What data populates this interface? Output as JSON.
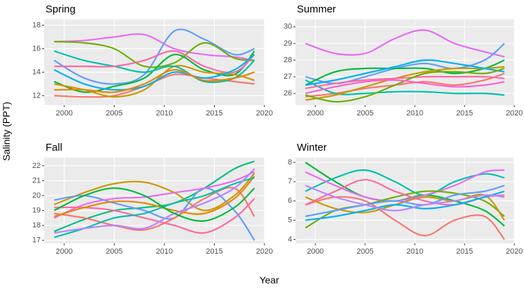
{
  "x_label": "Year",
  "y_label": "Salinity (PPT)",
  "chart_data": [
    {
      "type": "line",
      "title": "Spring",
      "x": [
        1999,
        2002,
        2005,
        2008,
        2011,
        2014,
        2017,
        2019
      ],
      "xlim": [
        1998,
        2020
      ],
      "xticks": [
        2000,
        2005,
        2010,
        2015,
        2020
      ],
      "ylim": [
        11.2,
        18.5
      ],
      "yticks": [
        12,
        14,
        16,
        18
      ],
      "grid": true,
      "series": [
        {
          "color": "#E76BF3",
          "values": [
            16.6,
            16.7,
            17.0,
            17.2,
            16.0,
            15.5,
            15.3,
            15.0
          ]
        },
        {
          "color": "#619CFF",
          "values": [
            15.0,
            13.5,
            13.0,
            13.8,
            17.5,
            16.8,
            15.5,
            16.0
          ]
        },
        {
          "color": "#F8766D",
          "values": [
            12.0,
            11.9,
            12.0,
            12.8,
            13.8,
            13.5,
            13.2,
            13.0
          ]
        },
        {
          "color": "#6BB100",
          "values": [
            16.6,
            16.5,
            16.0,
            14.5,
            14.8,
            16.5,
            15.2,
            15.0
          ]
        },
        {
          "color": "#00BA38",
          "values": [
            13.2,
            12.3,
            12.8,
            13.5,
            15.5,
            14.2,
            13.8,
            15.8
          ]
        },
        {
          "color": "#C99800",
          "values": [
            13.0,
            12.5,
            11.9,
            12.5,
            14.5,
            14.0,
            13.8,
            13.3
          ]
        },
        {
          "color": "#00C0AF",
          "values": [
            15.8,
            15.0,
            14.5,
            14.0,
            14.5,
            13.2,
            13.5,
            15.0
          ]
        },
        {
          "color": "#FF67A4",
          "values": [
            14.5,
            14.5,
            14.5,
            15.0,
            15.8,
            14.5,
            14.0,
            15.5
          ]
        },
        {
          "color": "#00B0F6",
          "values": [
            14.2,
            13.0,
            12.5,
            12.8,
            14.0,
            13.5,
            14.2,
            15.5
          ]
        },
        {
          "color": "#E58700",
          "values": [
            12.5,
            12.5,
            12.3,
            13.0,
            14.2,
            13.3,
            13.5,
            14.0
          ]
        }
      ]
    },
    {
      "type": "line",
      "title": "Summer",
      "x": [
        1999,
        2002,
        2005,
        2008,
        2011,
        2014,
        2017,
        2019
      ],
      "xlim": [
        1998,
        2020
      ],
      "xticks": [
        2000,
        2005,
        2010,
        2015,
        2020
      ],
      "ylim": [
        25.3,
        30.45
      ],
      "yticks": [
        26,
        27,
        28,
        29,
        30
      ],
      "grid": true,
      "series": [
        {
          "color": "#E76BF3",
          "values": [
            29.0,
            28.4,
            28.4,
            29.3,
            29.8,
            29.0,
            28.5,
            28.2
          ]
        },
        {
          "color": "#619CFF",
          "values": [
            27.0,
            26.6,
            27.0,
            27.5,
            27.8,
            27.5,
            28.0,
            29.0
          ]
        },
        {
          "color": "#F8766D",
          "values": [
            25.8,
            26.0,
            26.3,
            26.5,
            26.7,
            26.5,
            26.8,
            27.2
          ]
        },
        {
          "color": "#00BA38",
          "values": [
            26.5,
            27.3,
            27.5,
            27.5,
            27.5,
            27.2,
            27.5,
            28.0
          ]
        },
        {
          "color": "#00C0AF",
          "values": [
            26.8,
            26.0,
            26.0,
            26.1,
            26.1,
            26.0,
            26.0,
            25.9
          ]
        },
        {
          "color": "#C99800",
          "values": [
            25.6,
            25.9,
            26.4,
            26.9,
            27.3,
            27.5,
            27.5,
            27.6
          ]
        },
        {
          "color": "#00B0F6",
          "values": [
            26.5,
            26.8,
            27.2,
            27.6,
            28.0,
            27.8,
            27.5,
            27.3
          ]
        },
        {
          "color": "#FF67A4",
          "values": [
            26.3,
            26.6,
            26.8,
            26.9,
            27.0,
            27.0,
            27.0,
            26.9
          ]
        },
        {
          "color": "#6BB100",
          "values": [
            25.9,
            25.5,
            25.8,
            26.5,
            27.2,
            27.3,
            27.2,
            27.5
          ]
        },
        {
          "color": "#FD61D1",
          "values": [
            26.0,
            26.4,
            26.7,
            26.8,
            26.6,
            26.4,
            26.5,
            26.7
          ]
        }
      ]
    },
    {
      "type": "line",
      "title": "Fall",
      "x": [
        1999,
        2002,
        2005,
        2008,
        2011,
        2014,
        2017,
        2019
      ],
      "xlim": [
        1998,
        2020
      ],
      "xticks": [
        2000,
        2005,
        2010,
        2015,
        2020
      ],
      "ylim": [
        16.8,
        22.55
      ],
      "yticks": [
        17,
        18,
        19,
        20,
        21,
        22
      ],
      "grid": true,
      "series": [
        {
          "color": "#00BF7D",
          "values": [
            17.6,
            18.4,
            19.0,
            19.2,
            19.5,
            20.5,
            21.8,
            22.3
          ]
        },
        {
          "color": "#C99800",
          "values": [
            19.4,
            20.2,
            20.8,
            20.9,
            20.2,
            19.0,
            20.0,
            21.5
          ]
        },
        {
          "color": "#619CFF",
          "values": [
            19.7,
            20.0,
            19.5,
            19.0,
            18.5,
            20.5,
            19.0,
            17.0
          ]
        },
        {
          "color": "#E76BF3",
          "values": [
            18.5,
            19.4,
            19.8,
            19.9,
            20.2,
            20.5,
            21.0,
            21.6
          ]
        },
        {
          "color": "#FF67A4",
          "values": [
            19.2,
            19.2,
            19.0,
            18.5,
            18.0,
            17.5,
            18.5,
            19.8
          ]
        },
        {
          "color": "#F8766D",
          "values": [
            18.8,
            18.5,
            18.0,
            17.7,
            18.5,
            19.8,
            20.5,
            18.6
          ]
        },
        {
          "color": "#E58700",
          "values": [
            18.6,
            19.2,
            19.6,
            19.5,
            19.0,
            18.8,
            19.8,
            21.3
          ]
        },
        {
          "color": "#00C0AF",
          "values": [
            17.2,
            17.8,
            18.5,
            18.8,
            19.5,
            20.0,
            20.8,
            21.2
          ]
        },
        {
          "color": "#B983FF",
          "values": [
            17.5,
            17.8,
            18.0,
            17.8,
            18.8,
            19.5,
            20.5,
            21.8
          ]
        },
        {
          "color": "#00BA38",
          "values": [
            19.0,
            20.0,
            20.5,
            20.0,
            18.8,
            18.3,
            19.2,
            20.5
          ]
        }
      ]
    },
    {
      "type": "line",
      "title": "Winter",
      "x": [
        1999,
        2002,
        2005,
        2008,
        2011,
        2014,
        2017,
        2019
      ],
      "xlim": [
        1998,
        2020
      ],
      "xticks": [
        2000,
        2005,
        2010,
        2015,
        2020
      ],
      "ylim": [
        3.8,
        8.25
      ],
      "yticks": [
        4,
        5,
        6,
        7,
        8
      ],
      "grid": true,
      "series": [
        {
          "color": "#00BA38",
          "values": [
            8.0,
            7.0,
            6.2,
            6.0,
            6.3,
            6.0,
            5.5,
            4.7
          ]
        },
        {
          "color": "#00C0AF",
          "values": [
            6.5,
            7.2,
            7.6,
            7.0,
            6.3,
            7.0,
            7.4,
            7.2
          ]
        },
        {
          "color": "#F8766D",
          "values": [
            5.8,
            6.2,
            6.0,
            5.0,
            4.2,
            5.0,
            5.2,
            4.0
          ]
        },
        {
          "color": "#E76BF3",
          "values": [
            7.5,
            6.8,
            6.2,
            6.0,
            6.3,
            6.8,
            7.5,
            7.6
          ]
        },
        {
          "color": "#6BB100",
          "values": [
            4.6,
            5.5,
            5.8,
            6.2,
            6.5,
            6.4,
            6.0,
            5.2
          ]
        },
        {
          "color": "#C99800",
          "values": [
            6.2,
            5.6,
            5.4,
            5.8,
            6.2,
            6.0,
            6.3,
            5.0
          ]
        },
        {
          "color": "#FF67A4",
          "values": [
            5.8,
            6.5,
            7.1,
            6.5,
            6.0,
            5.8,
            6.2,
            6.3
          ]
        },
        {
          "color": "#619CFF",
          "values": [
            5.2,
            5.5,
            5.8,
            6.0,
            5.8,
            6.3,
            6.5,
            6.8
          ]
        },
        {
          "color": "#00B0F6",
          "values": [
            5.0,
            5.2,
            5.5,
            5.8,
            5.6,
            5.8,
            6.2,
            6.5
          ]
        },
        {
          "color": "#B983FF",
          "values": [
            6.8,
            6.2,
            5.8,
            5.5,
            5.8,
            6.0,
            6.3,
            6.2
          ]
        }
      ]
    }
  ]
}
